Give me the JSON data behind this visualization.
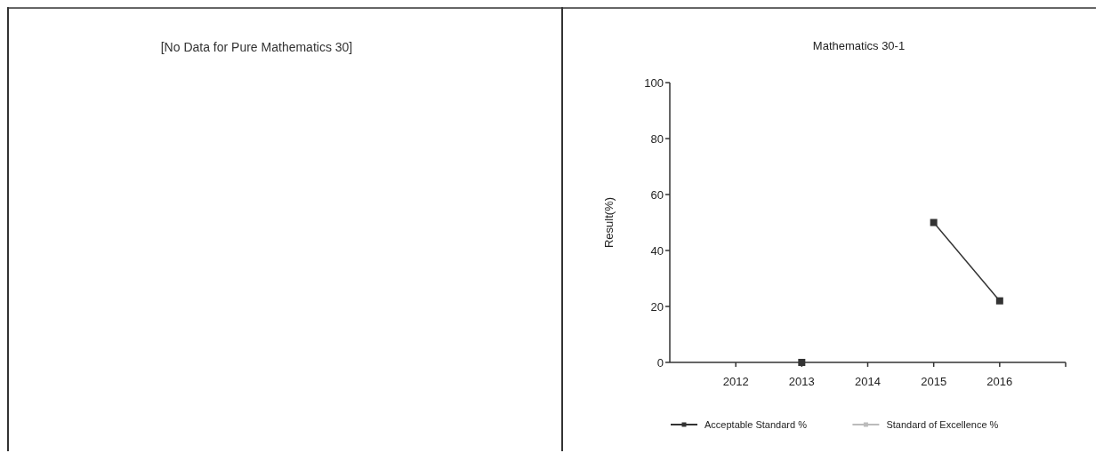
{
  "chart_data": [
    {
      "type": "other",
      "title": "[No Data for Pure Mathematics 30]"
    },
    {
      "type": "line",
      "title": "Mathematics 30-1",
      "ylabel": "Result(%)",
      "categories": [
        "2012",
        "2013",
        "2014",
        "2015",
        "2016"
      ],
      "ylim": [
        0,
        100
      ],
      "yticks": [
        0,
        20,
        40,
        60,
        80,
        100
      ],
      "grid": false,
      "legend": "bottom",
      "marker": "square",
      "series": [
        {
          "name": "Acceptable Standard %",
          "color": "#333333",
          "values": [
            null,
            0,
            null,
            50,
            22
          ]
        },
        {
          "name": "Standard of Excellence %",
          "color": "#bbbbbb",
          "values": [
            null,
            null,
            null,
            null,
            null
          ]
        }
      ]
    }
  ]
}
